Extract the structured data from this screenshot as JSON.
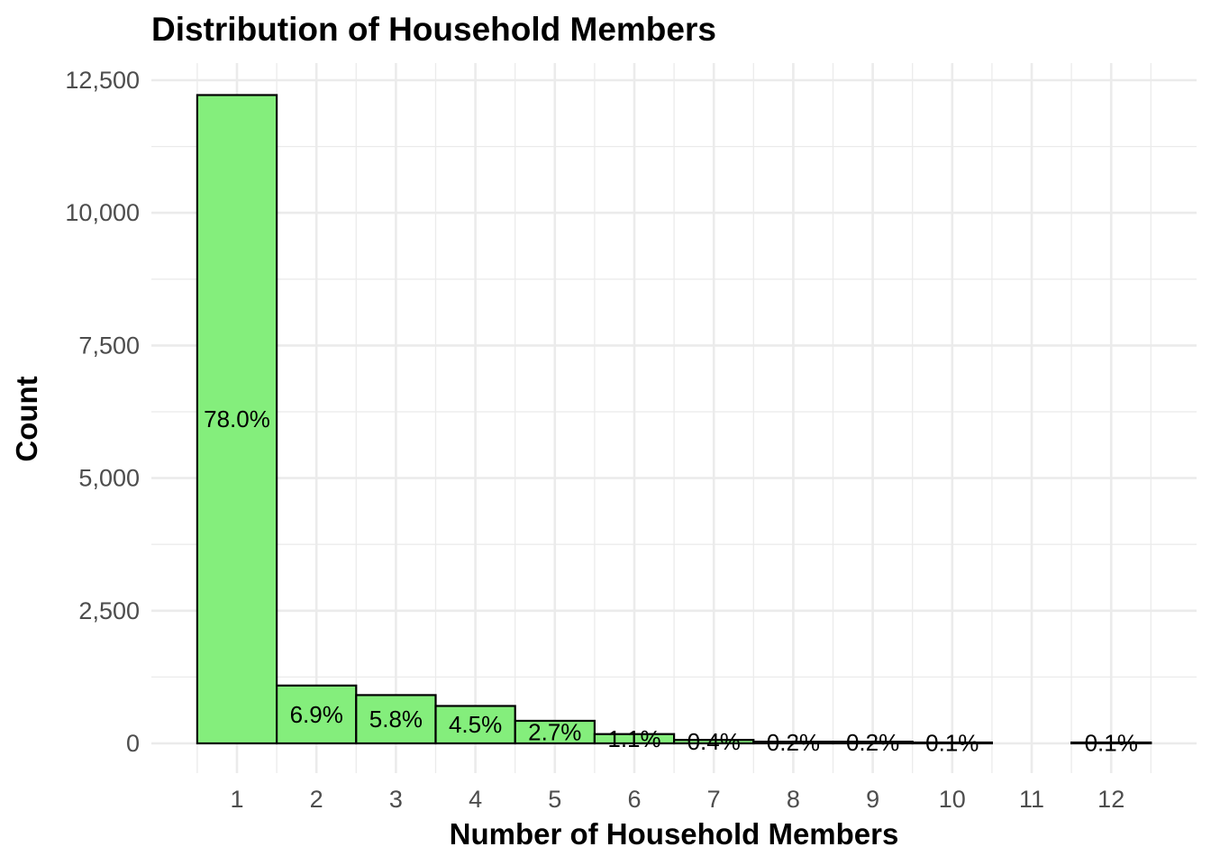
{
  "chart_data": {
    "type": "bar",
    "title": "Distribution of Household Members",
    "xlabel": "Number of Household Members",
    "ylabel": "Count",
    "categories": [
      "1",
      "2",
      "3",
      "4",
      "5",
      "6",
      "7",
      "8",
      "9",
      "10",
      "11",
      "12"
    ],
    "values": [
      12220,
      1090,
      910,
      705,
      425,
      175,
      65,
      32,
      32,
      16,
      0,
      16
    ],
    "labels": [
      "78.0%",
      "6.9%",
      "5.8%",
      "4.5%",
      "2.7%",
      "1.1%",
      "0.4%",
      "0.2%",
      "0.2%",
      "0.1%",
      "",
      "0.1%"
    ],
    "yticks": [
      0,
      2500,
      5000,
      7500,
      10000,
      12500
    ],
    "ytick_labels": [
      "0",
      "2,500",
      "5,000",
      "7,500",
      "10,000",
      "12,500"
    ],
    "ylim": [
      -620,
      12860
    ],
    "bar_color": "#84ee7c",
    "grid": true,
    "legend": "none"
  }
}
